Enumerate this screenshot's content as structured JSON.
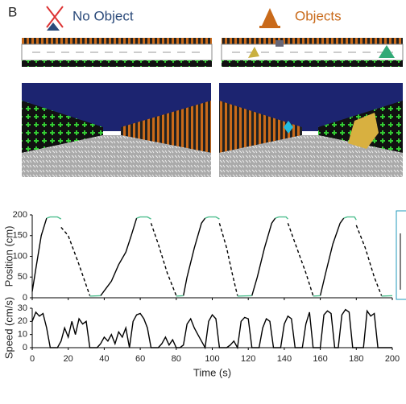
{
  "panel_label": "B",
  "conditions": [
    "No Object",
    "Objects"
  ],
  "chart_data": [
    {
      "type": "line",
      "ylabel": "Position (cm)",
      "xlim": [
        0,
        200
      ],
      "xticks": [
        0,
        20,
        40,
        60,
        80,
        100,
        120,
        140,
        160,
        180,
        200
      ],
      "ylim": [
        0,
        200
      ],
      "yticks": [
        0,
        50,
        100,
        150,
        200
      ],
      "series": [
        {
          "color": "#000000",
          "line_style": "solid",
          "x": [
            0,
            2,
            5,
            8,
            20,
            38,
            44,
            48,
            52,
            55,
            58,
            70,
            84,
            86,
            90,
            94,
            96,
            110,
            122,
            125,
            129,
            133,
            135,
            150,
            160,
            163,
            167,
            171,
            173
          ],
          "values": [
            15,
            70,
            150,
            192,
            null,
            5,
            40,
            80,
            110,
            150,
            192,
            null,
            5,
            50,
            120,
            180,
            192,
            null,
            5,
            50,
            120,
            180,
            192,
            null,
            5,
            60,
            130,
            180,
            192
          ]
        },
        {
          "color": "#4fbf8f",
          "line_style": "solid",
          "x": [
            8,
            10,
            14,
            16,
            20,
            32,
            38,
            45,
            58,
            60,
            64,
            66,
            70,
            80,
            84,
            90,
            96,
            98,
            102,
            104,
            108,
            114,
            122,
            128,
            135,
            137,
            141,
            142,
            150,
            156,
            160,
            165,
            173,
            175,
            179,
            180,
            185,
            194,
            200
          ],
          "values": [
            192,
            195,
            195,
            190,
            null,
            4,
            5,
            null,
            192,
            195,
            195,
            190,
            null,
            4,
            5,
            null,
            192,
            195,
            195,
            190,
            null,
            4,
            5,
            null,
            192,
            195,
            195,
            190,
            null,
            4,
            5,
            null,
            192,
            195,
            195,
            188,
            null,
            4,
            5
          ]
        },
        {
          "color": "#000000",
          "line_style": "dashed",
          "x": [
            16,
            20,
            26,
            32,
            40,
            66,
            70,
            75,
            80,
            90,
            104,
            108,
            111,
            114,
            118,
            142,
            147,
            152,
            156,
            165,
            180,
            185,
            190,
            194
          ],
          "values": [
            170,
            150,
            80,
            5,
            null,
            180,
            130,
            60,
            5,
            null,
            180,
            120,
            60,
            5,
            null,
            180,
            120,
            60,
            5,
            null,
            175,
            120,
            50,
            5
          ]
        }
      ]
    },
    {
      "type": "line",
      "ylabel": "Speed (cm/s)",
      "xlabel": "Time (s)",
      "xlim": [
        0,
        200
      ],
      "xticks": [
        0,
        20,
        40,
        60,
        80,
        100,
        120,
        140,
        160,
        180,
        200
      ],
      "ylim": [
        0,
        30
      ],
      "yticks": [
        0,
        10,
        20,
        30
      ],
      "series": [
        {
          "color": "#000000",
          "line_style": "solid",
          "x": [
            0,
            2,
            4,
            6,
            8,
            10,
            12,
            14,
            16,
            18,
            20,
            22,
            24,
            26,
            28,
            30,
            32,
            34,
            36,
            38,
            40,
            42,
            44,
            46,
            48,
            50,
            52,
            54,
            56,
            58,
            60,
            62,
            64,
            66,
            68,
            70,
            72,
            74,
            76,
            78,
            80,
            82,
            84,
            86,
            88,
            90,
            92,
            94,
            96,
            98,
            100,
            102,
            104,
            106,
            108,
            110,
            112,
            114,
            116,
            118,
            120,
            122,
            124,
            126,
            128,
            130,
            132,
            134,
            136,
            138,
            140,
            142,
            144,
            146,
            148,
            150,
            152,
            154,
            156,
            158,
            160,
            162,
            164,
            166,
            168,
            170,
            172,
            174,
            176,
            178,
            180,
            182,
            184,
            186,
            188,
            190,
            192,
            194,
            196,
            198,
            200
          ],
          "values": [
            20,
            27,
            24,
            26,
            15,
            0,
            0,
            0,
            5,
            15,
            8,
            20,
            10,
            22,
            18,
            20,
            0,
            0,
            0,
            3,
            8,
            5,
            10,
            3,
            12,
            8,
            15,
            0,
            20,
            25,
            26,
            22,
            15,
            0,
            0,
            0,
            3,
            8,
            2,
            6,
            0,
            0,
            2,
            18,
            22,
            15,
            10,
            5,
            0,
            20,
            25,
            22,
            0,
            0,
            0,
            2,
            5,
            0,
            20,
            23,
            22,
            0,
            0,
            0,
            15,
            22,
            20,
            0,
            0,
            0,
            18,
            24,
            22,
            0,
            0,
            0,
            18,
            27,
            0,
            0,
            0,
            25,
            28,
            26,
            0,
            0,
            25,
            29,
            27,
            0,
            0,
            0,
            0,
            28,
            24,
            26,
            0,
            0,
            0,
            0,
            0
          ]
        }
      ]
    }
  ]
}
